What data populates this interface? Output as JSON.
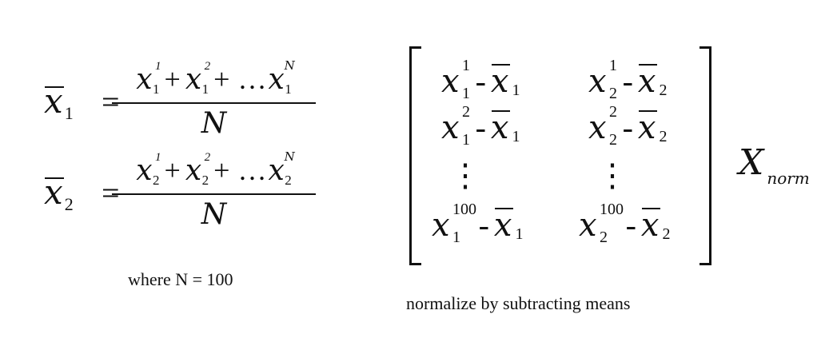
{
  "equation_1": {
    "lhs_var": "x",
    "lhs_sub": "1",
    "equals": "=",
    "terms": [
      {
        "var": "x",
        "sup": "1",
        "sub": "1"
      },
      {
        "var": "x",
        "sup": "2",
        "sub": "1"
      },
      {
        "var": "x",
        "sup": "N",
        "sub": "1"
      }
    ],
    "plus": "+",
    "ellipsis": "…",
    "denominator": "N"
  },
  "equation_2": {
    "lhs_var": "x",
    "lhs_sub": "2",
    "equals": "=",
    "terms": [
      {
        "var": "x",
        "sup": "1",
        "sub": "2"
      },
      {
        "var": "x",
        "sup": "2",
        "sub": "2"
      },
      {
        "var": "x",
        "sup": "N",
        "sub": "2"
      }
    ],
    "plus": "+",
    "ellipsis": "…",
    "denominator": "N"
  },
  "caption_left": "where N = 100",
  "matrix": {
    "minus": "-",
    "rows": [
      [
        {
          "sup": "1",
          "sub": "1",
          "mean_sub": "1"
        },
        {
          "sup": "1",
          "sub": "2",
          "mean_sub": "2"
        }
      ],
      [
        {
          "sup": "2",
          "sub": "1",
          "mean_sub": "1"
        },
        {
          "sup": "2",
          "sub": "2",
          "mean_sub": "2"
        }
      ],
      [
        {
          "sup": "100",
          "sub": "1",
          "mean_sub": "1"
        },
        {
          "sup": "100",
          "sub": "2",
          "mean_sub": "2"
        }
      ]
    ],
    "vdots": "⋮",
    "label_var": "X",
    "label_sub": "norm"
  },
  "caption_right": "normalize by subtracting means"
}
